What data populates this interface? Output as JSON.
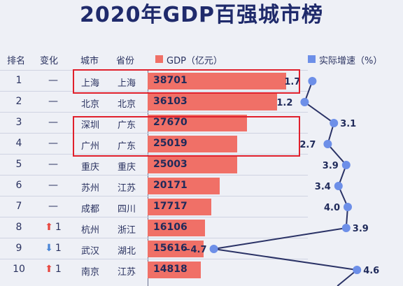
{
  "title": "2020年GDP百强城市榜",
  "headers": {
    "rank": "排名",
    "change": "变化",
    "city": "城市",
    "province": "省份",
    "gdp": "GDP（亿元）",
    "growth": "实际增速（%）"
  },
  "colors": {
    "bar": "#f07067",
    "growth": "#6d8fe8",
    "highlight": "#e0202c",
    "up_arrow": "#e8463f",
    "down_arrow": "#4b86d6"
  },
  "chart_data": {
    "type": "bar",
    "categories": [
      "上海",
      "北京",
      "深圳",
      "广州",
      "重庆",
      "苏州",
      "成都",
      "杭州",
      "武汉",
      "南京"
    ],
    "series": [
      {
        "name": "GDP（亿元）",
        "values": [
          38701,
          36103,
          27670,
          25019,
          25003,
          20171,
          17717,
          16106,
          15616,
          14818
        ]
      },
      {
        "name": "实际增速（%）",
        "values": [
          1.7,
          1.2,
          3.1,
          2.7,
          3.9,
          3.4,
          4.0,
          3.9,
          -4.7,
          4.6
        ]
      }
    ]
  },
  "rows": [
    {
      "rank": "1",
      "change": "—",
      "change_dir": "none",
      "city": "上海",
      "province": "上海",
      "gdp": "38701",
      "growth": "1.7"
    },
    {
      "rank": "2",
      "change": "—",
      "change_dir": "none",
      "city": "北京",
      "province": "北京",
      "gdp": "36103",
      "growth": "1.2"
    },
    {
      "rank": "3",
      "change": "—",
      "change_dir": "none",
      "city": "深圳",
      "province": "广东",
      "gdp": "27670",
      "growth": "3.1"
    },
    {
      "rank": "4",
      "change": "—",
      "change_dir": "none",
      "city": "广州",
      "province": "广东",
      "gdp": "25019",
      "growth": "2.7"
    },
    {
      "rank": "5",
      "change": "—",
      "change_dir": "none",
      "city": "重庆",
      "province": "重庆",
      "gdp": "25003",
      "growth": "3.9"
    },
    {
      "rank": "6",
      "change": "—",
      "change_dir": "none",
      "city": "苏州",
      "province": "江苏",
      "gdp": "20171",
      "growth": "3.4"
    },
    {
      "rank": "7",
      "change": "—",
      "change_dir": "none",
      "city": "成都",
      "province": "四川",
      "gdp": "17717",
      "growth": "4.0"
    },
    {
      "rank": "8",
      "change": "1",
      "change_dir": "up",
      "city": "杭州",
      "province": "浙江",
      "gdp": "16106",
      "growth": "3.9"
    },
    {
      "rank": "9",
      "change": "1",
      "change_dir": "down",
      "city": "武汉",
      "province": "湖北",
      "gdp": "15616",
      "growth": "−4.7"
    },
    {
      "rank": "10",
      "change": "1",
      "change_dir": "up",
      "city": "南京",
      "province": "江苏",
      "gdp": "14818",
      "growth": "4.6"
    }
  ]
}
